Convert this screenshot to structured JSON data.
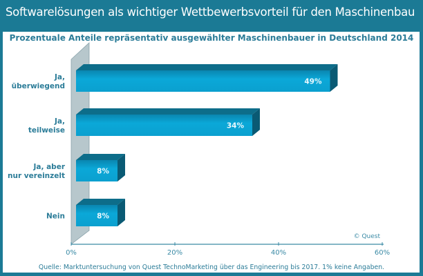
{
  "title": "Softwarelösungen als wichtiger Wettbewerbsvorteil  für den Maschinenbau",
  "chart_data": {
    "type": "bar",
    "orientation": "horizontal",
    "style": "3d",
    "title": "Prozentuale Anteile repräsentativ ausgewählter Maschinenbauer in Deutschland 2014",
    "categories": [
      [
        "Ja,",
        "überwiegend"
      ],
      [
        "Ja,",
        "teilweise"
      ],
      [
        "Ja, aber",
        "nur vereinzelt"
      ],
      [
        "Nein"
      ]
    ],
    "values": [
      49,
      34,
      8,
      8
    ],
    "data_labels": [
      "49%",
      "34%",
      "8%",
      "8%"
    ],
    "xlim": [
      0,
      60
    ],
    "x_ticks": [
      "0%",
      "20%",
      "40%",
      "60%"
    ],
    "grid": false,
    "copyright": "© Quest",
    "source": "Quelle: Marktuntersuchung von Quest TechnoMarketing über das Engineering bis 2017. 1% keine Angaben.",
    "colors": {
      "bar_front": "#0ba3d3",
      "bar_top": "#0d6d8a",
      "bar_side": "#0a5a74",
      "wall": "#b7c7cc",
      "frame": "#1b7a95",
      "text": "#2b7c98"
    }
  }
}
